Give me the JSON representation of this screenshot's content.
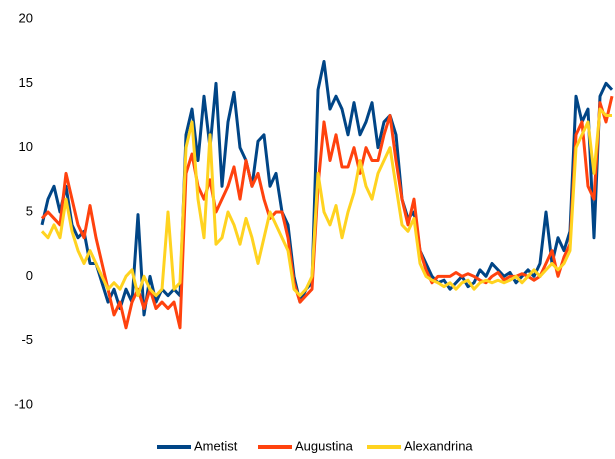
{
  "chart_data": {
    "type": "line",
    "categories": [
      null,
      null,
      null,
      null,
      null,
      null,
      null,
      null,
      null,
      null,
      null,
      null,
      null,
      null,
      null,
      null,
      null,
      null,
      null,
      null,
      null,
      null,
      null,
      null,
      null,
      null,
      null,
      null,
      null,
      null,
      null,
      null,
      null,
      null,
      null,
      null,
      null,
      null,
      null,
      null,
      null,
      null,
      null,
      null,
      null,
      null,
      null,
      null,
      null,
      null,
      null,
      null,
      null,
      null,
      null,
      null,
      null,
      null,
      null,
      null,
      null,
      null,
      null,
      null,
      null,
      null,
      null,
      null,
      null,
      null,
      null,
      null,
      null,
      null,
      null,
      null,
      null,
      null,
      null,
      null,
      null,
      null,
      null,
      null,
      null,
      null,
      null,
      null,
      null,
      null,
      null,
      null,
      null,
      null,
      null,
      null
    ],
    "series": [
      {
        "name": "Ametist",
        "color": "#004586",
        "values": [
          4,
          6,
          7,
          5,
          7,
          4,
          3,
          3.5,
          1,
          1,
          -0.5,
          -2,
          -1,
          -2.5,
          -1,
          -2,
          4.8,
          -3,
          0,
          -2,
          -1,
          -1.5,
          -1,
          -1.5,
          11,
          13,
          9,
          14,
          10,
          15,
          7,
          12,
          14.3,
          10,
          9,
          7,
          10.5,
          11,
          7,
          8,
          5,
          4,
          0,
          -2,
          -1,
          -0.5,
          14.5,
          16.7,
          13,
          14,
          13,
          11,
          13.5,
          11,
          12,
          13.5,
          10,
          12,
          12.5,
          11,
          6,
          4.5,
          5,
          2,
          1,
          0,
          -0.5,
          -0.3,
          -1,
          -0.5,
          0,
          -0.8,
          -0.5,
          0.5,
          0,
          1,
          0.5,
          0,
          0.3,
          -0.5,
          0,
          0.5,
          0,
          1,
          5,
          1,
          3,
          2,
          3.5,
          14,
          12,
          13,
          3,
          14,
          15,
          14.5
        ]
      },
      {
        "name": "Augustina",
        "color": "#ff420e",
        "values": [
          4.5,
          5,
          4.5,
          4,
          8,
          6,
          4,
          3,
          5.5,
          3,
          1,
          -1,
          -3,
          -2,
          -4,
          -2,
          -1,
          -2.5,
          -1,
          -2.5,
          -2,
          -2.5,
          -2,
          -4,
          8,
          9.5,
          7,
          6,
          7.5,
          5,
          6,
          7,
          8.5,
          6,
          9,
          7,
          8,
          6,
          4.5,
          5,
          5,
          3,
          -0.5,
          -2,
          -1.5,
          -1,
          7,
          12,
          9,
          11,
          8.5,
          8.5,
          10,
          8,
          10,
          9,
          9,
          11,
          12.5,
          9,
          6,
          4,
          6,
          2,
          0.5,
          -0.5,
          0,
          0,
          0,
          0.3,
          0,
          0.2,
          0,
          -0.3,
          -0.5,
          0,
          0.3,
          -0.3,
          0,
          0,
          0.2,
          0,
          -0.3,
          0,
          1,
          2,
          0,
          1.5,
          2.5,
          11,
          12,
          7,
          6,
          13.5,
          12,
          14
        ]
      },
      {
        "name": "Alexandrina",
        "color": "#ffd320",
        "values": [
          3.5,
          3,
          4,
          3,
          6,
          3.5,
          2,
          1,
          2,
          1,
          0,
          -1,
          -0.5,
          -1,
          0,
          0.5,
          -1.5,
          0,
          -1,
          -1.5,
          -1,
          5,
          -1,
          -0.5,
          10,
          12,
          6,
          3,
          11,
          2.5,
          3,
          5,
          4,
          2.5,
          4.5,
          3,
          1,
          3,
          5,
          4,
          3,
          2,
          -1,
          -1.5,
          -1,
          0,
          8,
          5,
          4,
          5.5,
          3,
          5,
          6.5,
          9,
          7,
          6,
          8,
          9,
          10,
          7,
          4,
          3.5,
          4.5,
          1,
          0,
          -0.3,
          -0.5,
          -0.8,
          -0.5,
          -1,
          -0.5,
          -0.3,
          -1,
          -0.5,
          -0.3,
          -0.5,
          -0.3,
          -0.5,
          -0.3,
          0,
          -0.5,
          0,
          0.5,
          0,
          0.5,
          1,
          0.5,
          1,
          2,
          10,
          11,
          12,
          8,
          13,
          12.5,
          12.5
        ]
      }
    ],
    "ylim": [
      -10,
      20
    ],
    "yticks": [
      -10,
      -5,
      0,
      5,
      10,
      15,
      20
    ],
    "grid": false,
    "legend": "bottom"
  }
}
